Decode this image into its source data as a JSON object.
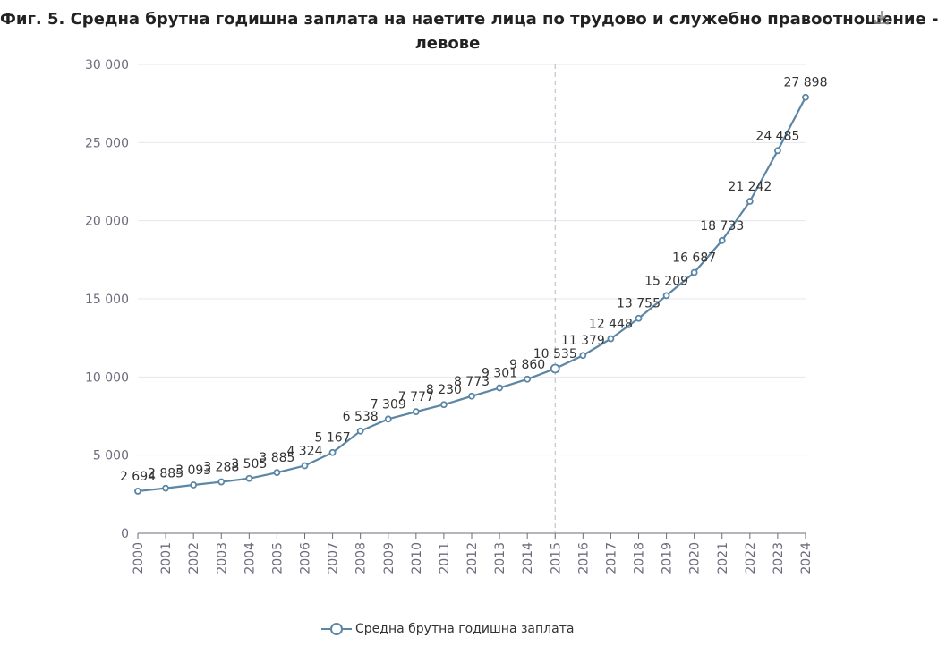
{
  "title_line1": "Фиг. 5. Средна брутна годишна заплата на наетите лица по трудово и служебно правоотношение -",
  "title_line2": "левове",
  "icons": {
    "download": "download-icon"
  },
  "colors": {
    "series": "#5b86a5",
    "grid": "#e6e6ef",
    "axis": "#6b6b7b",
    "marker_line": "#b7b7bf"
  },
  "chart_data": {
    "type": "line",
    "x": [
      "2000",
      "2001",
      "2002",
      "2003",
      "2004",
      "2005",
      "2006",
      "2007",
      "2008",
      "2009",
      "2010",
      "2011",
      "2012",
      "2013",
      "2014",
      "2015",
      "2016",
      "2017",
      "2018",
      "2019",
      "2020",
      "2021",
      "2022",
      "2023",
      "2024"
    ],
    "series": [
      {
        "name": "Средна брутна годишна заплата",
        "values": [
          2694,
          2885,
          3093,
          3288,
          3505,
          3885,
          4324,
          5167,
          6538,
          7309,
          7777,
          8230,
          8773,
          9301,
          9860,
          10535,
          11379,
          12448,
          13755,
          15209,
          16687,
          18733,
          21242,
          24485,
          27898
        ],
        "labels": [
          "2 694",
          "2 885",
          "3 093",
          "3 288",
          "3 505",
          "3 885",
          "4 324",
          "5 167",
          "6 538",
          "7 309",
          "7 777",
          "8 230",
          "8 773",
          "9 301",
          "9 860",
          "10 535",
          "11 379",
          "12 448",
          "13 755",
          "15 209",
          "16 687",
          "18 733",
          "21 242",
          "24 485",
          "27 898"
        ]
      }
    ],
    "ylim": [
      0,
      30000
    ],
    "yticks": [
      0,
      5000,
      10000,
      15000,
      20000,
      25000,
      30000
    ],
    "ytick_labels": [
      "0",
      "5 000",
      "10 000",
      "15 000",
      "20 000",
      "25 000",
      "30 000"
    ],
    "marker_year": "2015",
    "grid": true,
    "legend_position": "bottom-center"
  }
}
